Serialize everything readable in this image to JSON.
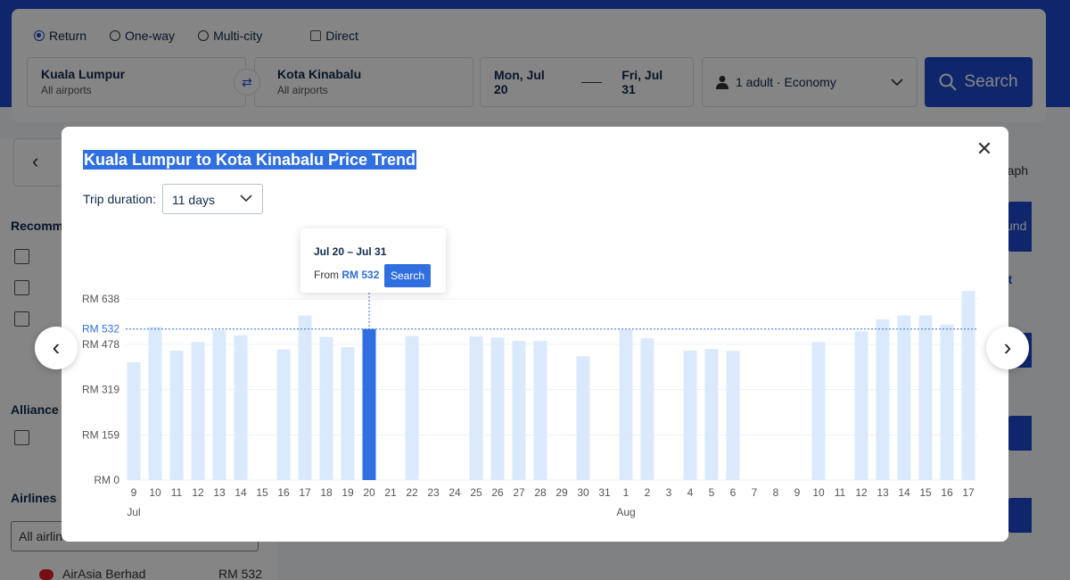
{
  "search": {
    "trip_types": [
      "Return",
      "One-way",
      "Multi-city"
    ],
    "selected_trip_type": "Return",
    "direct_label": "Direct",
    "from_city": "Kuala Lumpur",
    "from_sub": "All airports",
    "to_city": "Kota Kinabalu",
    "to_sub": "All airports",
    "depart_date": "Mon, Jul 20",
    "return_date": "Fri, Jul 31",
    "passengers": "1 adult · Economy",
    "search_label": "Search",
    "swap_icon": "swap-icon",
    "colors": {
      "brand": "#1d49d1"
    }
  },
  "sidebar": {
    "recommended_label": "Recomme",
    "alliance_label": "Alliance",
    "airlines_label": "Airlines",
    "airlines_input": "All airlin",
    "airline_row": {
      "name": "AirAsia Berhad",
      "price": "RM 532"
    }
  },
  "results": {
    "graph_label": "raph",
    "round_label": "und",
    "sort_fragment": "rt"
  },
  "modal": {
    "title": "Kuala Lumpur to Kota Kinabalu Price Trend",
    "duration_label": "Trip duration:",
    "duration_value": "11 days",
    "close_icon": "close-icon",
    "tooltip": {
      "dates": "Jul 20 – Jul 31",
      "from_prefix": "From",
      "price": "RM 532",
      "search_label": "Search"
    },
    "colors": {
      "bar": "#dbe9fc",
      "bar_selected": "#2f6fe0",
      "accent": "#2f6fe0"
    }
  },
  "chart_data": {
    "type": "bar",
    "title": "Kuala Lumpur to Kota Kinabalu Price Trend",
    "xlabel": "",
    "ylabel": "",
    "y_ticks": [
      "RM 0",
      "RM 159",
      "RM 319",
      "RM 478",
      "RM 638"
    ],
    "y_tick_values": [
      0,
      159,
      319,
      478,
      638
    ],
    "ylim": [
      0,
      638
    ],
    "reference_line": {
      "label": "RM 532",
      "value": 532
    },
    "selected_category": "20",
    "months": [
      {
        "label": "Jul",
        "first_category_index": 0
      },
      {
        "label": "Aug",
        "first_category_index": 23
      }
    ],
    "categories": [
      "9",
      "10",
      "11",
      "12",
      "13",
      "14",
      "15",
      "16",
      "17",
      "18",
      "19",
      "20",
      "21",
      "22",
      "23",
      "24",
      "25",
      "26",
      "27",
      "28",
      "29",
      "30",
      "31",
      "1",
      "2",
      "3",
      "4",
      "5",
      "6",
      "7",
      "8",
      "9",
      "10",
      "11",
      "12",
      "13",
      "14",
      "15",
      "16",
      "17"
    ],
    "values": [
      415,
      540,
      456,
      486,
      528,
      510,
      null,
      460,
      580,
      504,
      468,
      532,
      null,
      508,
      null,
      null,
      506,
      502,
      490,
      490,
      null,
      436,
      null,
      530,
      500,
      null,
      456,
      462,
      455,
      null,
      null,
      null,
      486,
      null,
      524,
      566,
      580,
      580,
      548,
      666
    ],
    "grid": true,
    "legend": "none"
  }
}
